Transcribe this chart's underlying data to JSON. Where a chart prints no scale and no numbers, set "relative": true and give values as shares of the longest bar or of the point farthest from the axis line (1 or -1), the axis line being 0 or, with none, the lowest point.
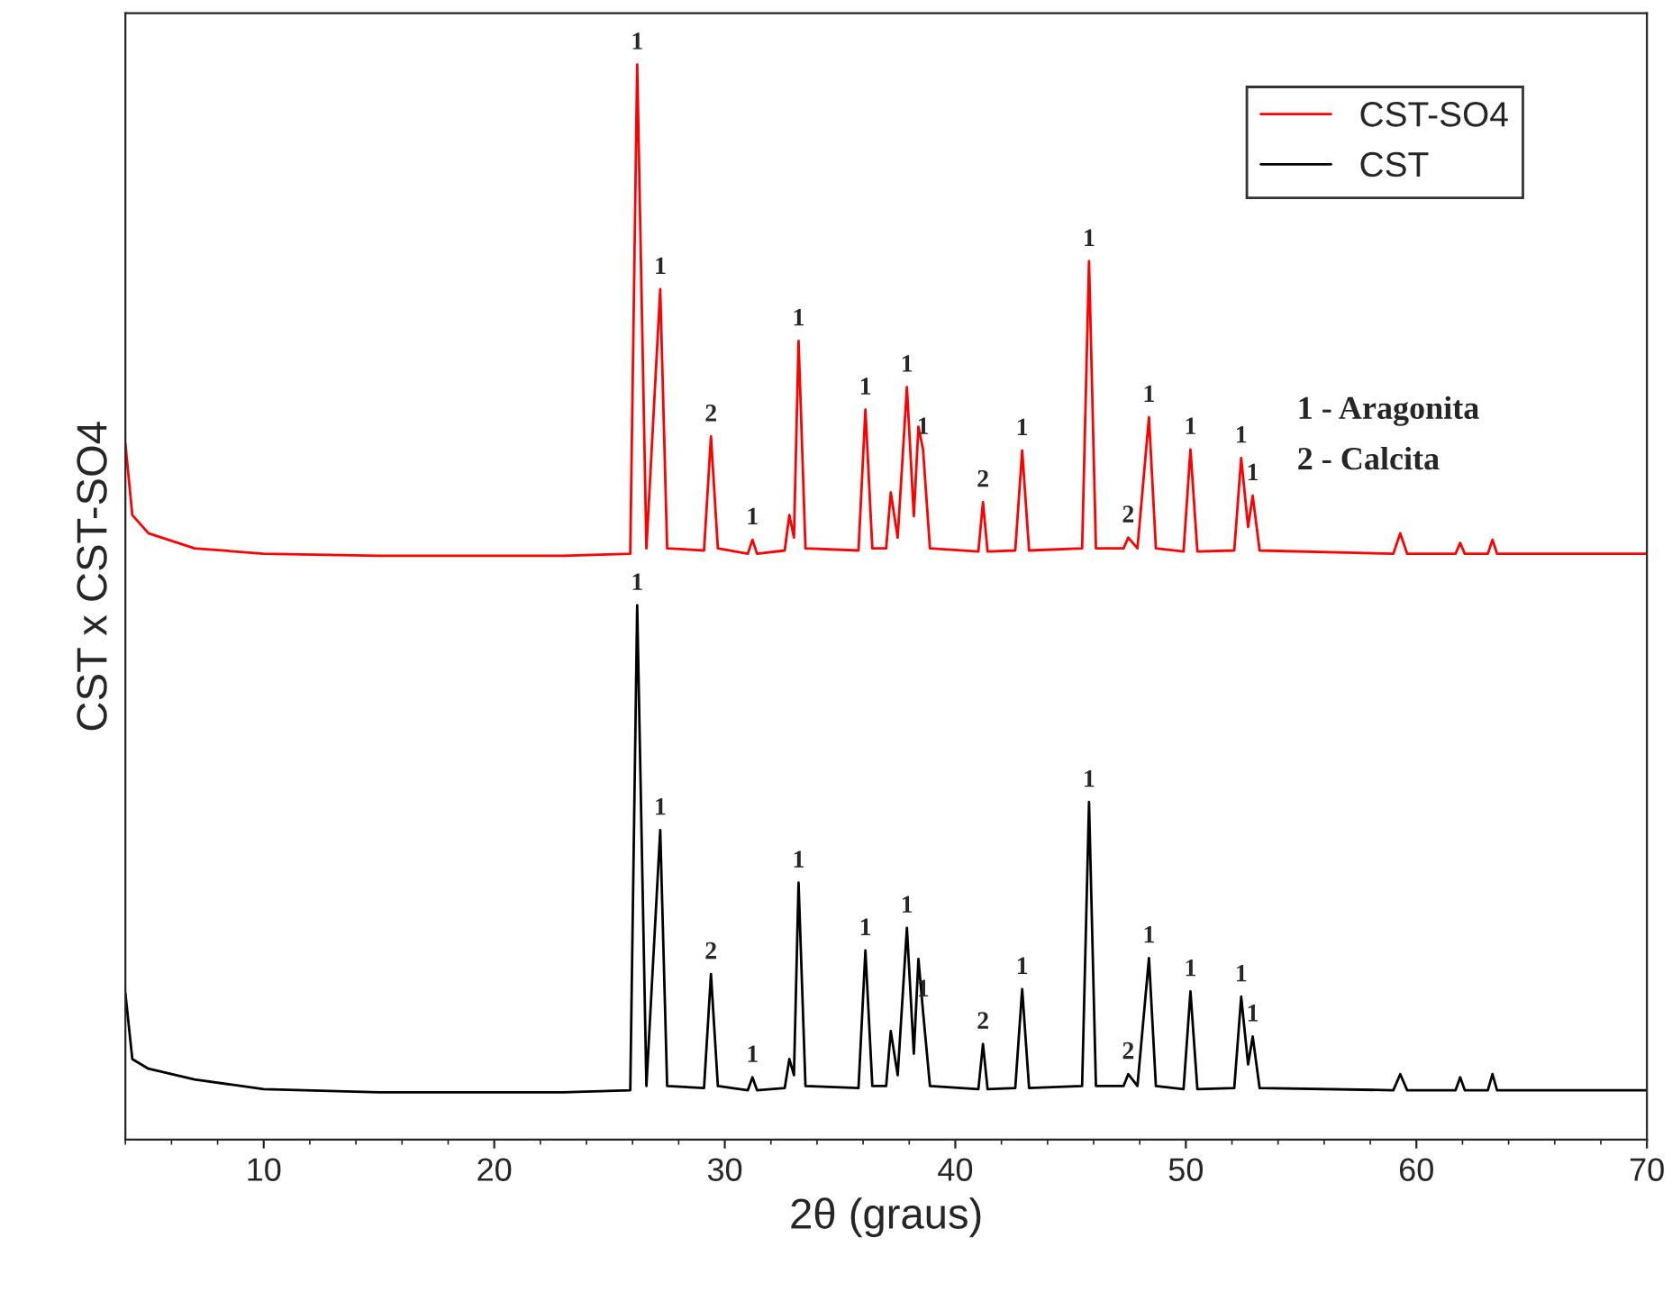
{
  "chart_data": {
    "type": "line",
    "relative": true,
    "xlabel": "2θ (graus)",
    "ylabel": "CST x CST-SO4",
    "xlim": [
      4,
      70
    ],
    "xticks": [
      10,
      20,
      30,
      40,
      50,
      60,
      70
    ],
    "legend": "top right",
    "grid": false,
    "x": [
      4,
      4.3,
      5,
      7,
      10,
      15,
      20,
      23,
      25.9,
      26.2,
      26.6,
      27.2,
      27.5,
      29.1,
      29.4,
      29.7,
      31.0,
      31.2,
      31.4,
      32.6,
      32.8,
      33.0,
      33.2,
      33.5,
      35.8,
      36.1,
      36.4,
      37.0,
      37.2,
      37.5,
      37.9,
      38.2,
      38.4,
      38.6,
      38.9,
      41.0,
      41.2,
      41.4,
      42.6,
      42.9,
      43.2,
      45.5,
      45.8,
      46.1,
      47.3,
      47.5,
      47.9,
      48.4,
      48.7,
      49.9,
      50.2,
      50.5,
      52.1,
      52.4,
      52.7,
      52.9,
      53.2,
      59.0,
      59.3,
      59.6,
      61.7,
      61.9,
      62.1,
      63.1,
      63.3,
      63.5,
      70
    ],
    "series": [
      {
        "name": "CST-SO4",
        "color": "#ff0000",
        "values": [
          0.647,
          0.581,
          0.564,
          0.55,
          0.545,
          0.543,
          0.543,
          0.543,
          0.545,
          1.0,
          0.55,
          0.791,
          0.55,
          0.548,
          0.654,
          0.55,
          0.545,
          0.558,
          0.545,
          0.548,
          0.581,
          0.56,
          0.743,
          0.55,
          0.548,
          0.679,
          0.55,
          0.55,
          0.602,
          0.56,
          0.7,
          0.58,
          0.663,
          0.642,
          0.55,
          0.547,
          0.593,
          0.547,
          0.548,
          0.641,
          0.548,
          0.55,
          0.817,
          0.55,
          0.55,
          0.56,
          0.55,
          0.672,
          0.55,
          0.547,
          0.642,
          0.547,
          0.548,
          0.634,
          0.57,
          0.599,
          0.548,
          0.545,
          0.564,
          0.545,
          0.545,
          0.555,
          0.545,
          0.545,
          0.558,
          0.545,
          0.545
        ]
      },
      {
        "name": "CST",
        "color": "#000000",
        "values": [
          0.136,
          0.075,
          0.066,
          0.056,
          0.047,
          0.044,
          0.044,
          0.044,
          0.046,
          0.497,
          0.05,
          0.288,
          0.05,
          0.048,
          0.154,
          0.05,
          0.046,
          0.058,
          0.046,
          0.048,
          0.075,
          0.06,
          0.239,
          0.05,
          0.048,
          0.176,
          0.05,
          0.05,
          0.101,
          0.06,
          0.197,
          0.08,
          0.168,
          0.119,
          0.05,
          0.047,
          0.089,
          0.047,
          0.048,
          0.14,
          0.048,
          0.05,
          0.314,
          0.05,
          0.05,
          0.061,
          0.05,
          0.169,
          0.05,
          0.047,
          0.138,
          0.047,
          0.048,
          0.133,
          0.07,
          0.096,
          0.048,
          0.046,
          0.061,
          0.046,
          0.046,
          0.058,
          0.046,
          0.046,
          0.061,
          0.046,
          0.046
        ]
      }
    ],
    "annotations": [
      {
        "text": "1",
        "x": 26.2,
        "y": 1.0
      },
      {
        "text": "1",
        "x": 27.2,
        "y": 0.791
      },
      {
        "text": "2",
        "x": 29.4,
        "y": 0.654
      },
      {
        "text": "1",
        "x": 31.2,
        "y": 0.558
      },
      {
        "text": "1",
        "x": 33.2,
        "y": 0.743
      },
      {
        "text": "1",
        "x": 36.1,
        "y": 0.679
      },
      {
        "text": "1",
        "x": 37.9,
        "y": 0.7
      },
      {
        "text": "1",
        "x": 38.6,
        "y": 0.642
      },
      {
        "text": "2",
        "x": 41.2,
        "y": 0.593
      },
      {
        "text": "1",
        "x": 42.9,
        "y": 0.641
      },
      {
        "text": "1",
        "x": 45.8,
        "y": 0.817
      },
      {
        "text": "2",
        "x": 47.5,
        "y": 0.56
      },
      {
        "text": "1",
        "x": 48.4,
        "y": 0.672
      },
      {
        "text": "1",
        "x": 50.2,
        "y": 0.642
      },
      {
        "text": "1",
        "x": 52.4,
        "y": 0.634
      },
      {
        "text": "1",
        "x": 52.9,
        "y": 0.599
      },
      {
        "text": "1",
        "x": 26.2,
        "y": 0.497
      },
      {
        "text": "1",
        "x": 27.2,
        "y": 0.288
      },
      {
        "text": "2",
        "x": 29.4,
        "y": 0.154
      },
      {
        "text": "1",
        "x": 31.2,
        "y": 0.058
      },
      {
        "text": "1",
        "x": 33.2,
        "y": 0.239
      },
      {
        "text": "1",
        "x": 36.1,
        "y": 0.176
      },
      {
        "text": "1",
        "x": 37.9,
        "y": 0.197
      },
      {
        "text": "1",
        "x": 38.6,
        "y": 0.119
      },
      {
        "text": "2",
        "x": 41.2,
        "y": 0.089
      },
      {
        "text": "1",
        "x": 42.9,
        "y": 0.14
      },
      {
        "text": "1",
        "x": 45.8,
        "y": 0.314
      },
      {
        "text": "2",
        "x": 47.5,
        "y": 0.061
      },
      {
        "text": "1",
        "x": 48.4,
        "y": 0.169
      },
      {
        "text": "1",
        "x": 50.2,
        "y": 0.138
      },
      {
        "text": "1",
        "x": 52.4,
        "y": 0.133
      },
      {
        "text": "1",
        "x": 52.9,
        "y": 0.096
      },
      "1 - Aragonita",
      "2 - Calcita"
    ]
  }
}
